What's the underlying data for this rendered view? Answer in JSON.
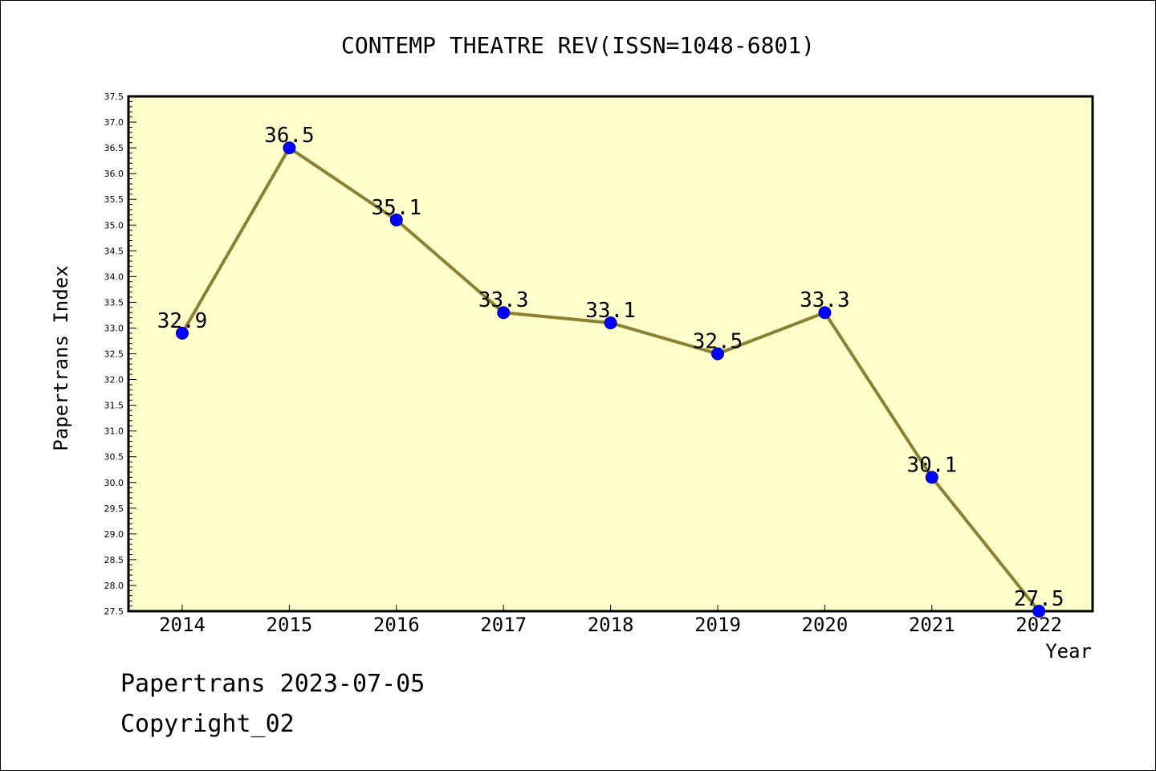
{
  "chart_data": {
    "type": "line",
    "title": "CONTEMP THEATRE REV(ISSN=1048-6801)",
    "xlabel": "Year",
    "ylabel": "Papertrans Index",
    "categories": [
      "2014",
      "2015",
      "2016",
      "2017",
      "2018",
      "2019",
      "2020",
      "2021",
      "2022"
    ],
    "values": [
      32.9,
      36.5,
      35.1,
      33.3,
      33.1,
      32.5,
      33.3,
      30.1,
      27.5
    ],
    "data_labels": [
      "32.9",
      "36.5",
      "35.1",
      "33.3",
      "33.1",
      "32.5",
      "33.3",
      "30.1",
      "27.5"
    ],
    "ylim": [
      27.5,
      37.5
    ],
    "y_ticks": [
      "27.5",
      "28.0",
      "28.5",
      "29.0",
      "29.5",
      "30.0",
      "30.5",
      "31.0",
      "31.5",
      "32.0",
      "32.5",
      "33.0",
      "33.5",
      "34.0",
      "34.5",
      "35.0",
      "35.5",
      "36.0",
      "36.5",
      "37.0",
      "37.5"
    ],
    "grid": false,
    "legend": "none",
    "colors": {
      "plot_background": "#ffffcc",
      "line": "#8b8034",
      "marker": "#0000ff",
      "marker_edge": "#00008b"
    }
  },
  "footer": {
    "date_text": "Papertrans 2023-07-05",
    "copyright_text": "Copyright_02"
  }
}
